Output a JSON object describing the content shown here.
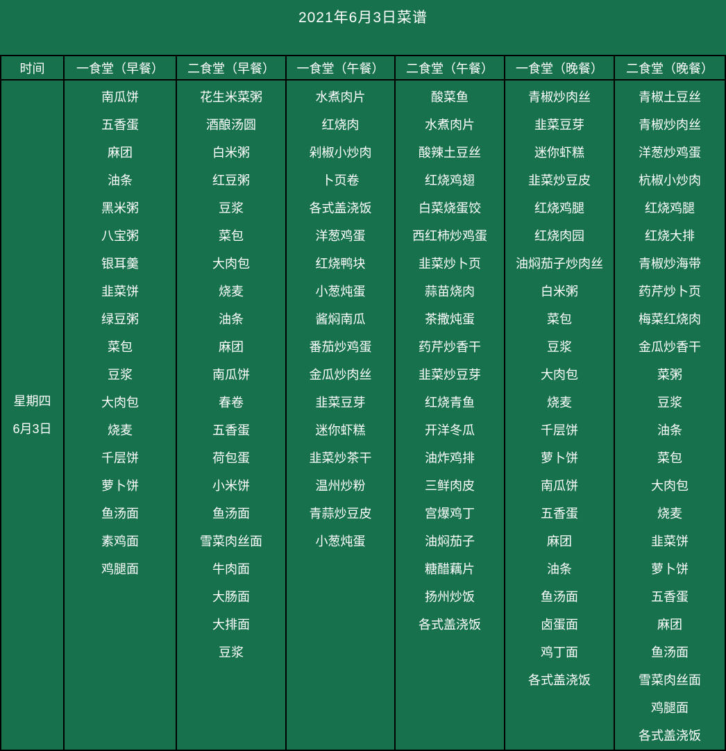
{
  "title": "2021年6月3日菜谱",
  "colors": {
    "background": "#17714D",
    "border": "#000000",
    "text": "#FFFFFF"
  },
  "table": {
    "time_header": "时间",
    "time_cell": {
      "line1": "星期四",
      "line2": "6月3日"
    },
    "columns": [
      {
        "header": "一食堂（早餐）",
        "items": [
          "南瓜饼",
          "五香蛋",
          "麻团",
          "油条",
          "黑米粥",
          "八宝粥",
          "银耳羹",
          "韭菜饼",
          "绿豆粥",
          "菜包",
          "豆浆",
          "大肉包",
          "烧麦",
          "千层饼",
          "萝卜饼",
          "鱼汤面",
          "素鸡面",
          "鸡腿面"
        ]
      },
      {
        "header": "二食堂（早餐）",
        "items": [
          "花生米菜粥",
          "酒酿汤圆",
          "白米粥",
          "红豆粥",
          "豆浆",
          "菜包",
          "大肉包",
          "烧麦",
          "油条",
          "麻团",
          "南瓜饼",
          "春卷",
          "五香蛋",
          "荷包蛋",
          "小米饼",
          "鱼汤面",
          "雪菜肉丝面",
          "牛肉面",
          "大肠面",
          "大排面",
          "豆浆"
        ]
      },
      {
        "header": "一食堂（午餐）",
        "items": [
          "水煮肉片",
          "红烧肉",
          "剁椒小炒肉",
          "卜页卷",
          "各式盖浇饭",
          "洋葱鸡蛋",
          "红烧鸭块",
          "小葱炖蛋",
          "酱焖南瓜",
          "番茄炒鸡蛋",
          "金瓜炒肉丝",
          "韭菜豆芽",
          "迷你虾糕",
          "韭菜炒茶干",
          "温州炒粉",
          "青蒜炒豆皮",
          "小葱炖蛋"
        ]
      },
      {
        "header": "二食堂（午餐）",
        "items": [
          "酸菜鱼",
          "水煮肉片",
          "酸辣土豆丝",
          "红烧鸡翅",
          "白菜烧蛋饺",
          "西红柿炒鸡蛋",
          "韭菜炒卜页",
          "蒜苗烧肉",
          "茶撒炖蛋",
          "药芹炒香干",
          "韭菜炒豆芽",
          "红烧青鱼",
          "开洋冬瓜",
          "油炸鸡排",
          "三鲜肉皮",
          "宫爆鸡丁",
          "油焖茄子",
          "糖醋藕片",
          "扬州炒饭",
          "各式盖浇饭"
        ]
      },
      {
        "header": "一食堂（晚餐）",
        "items": [
          "青椒炒肉丝",
          "韭菜豆芽",
          "迷你虾糕",
          "韭菜炒豆皮",
          "红烧鸡腿",
          "红烧肉园",
          "油焖茄子炒肉丝",
          "白米粥",
          "菜包",
          "豆浆",
          "大肉包",
          "烧麦",
          "千层饼",
          "萝卜饼",
          "南瓜饼",
          "五香蛋",
          "麻团",
          "油条",
          "鱼汤面",
          "卤蛋面",
          "鸡丁面",
          "各式盖浇饭"
        ]
      },
      {
        "header": "二食堂（晚餐）",
        "items": [
          "青椒土豆丝",
          "青椒炒肉丝",
          "洋葱炒鸡蛋",
          "杭椒小炒肉",
          "红烧鸡腿",
          "红烧大排",
          "青椒炒海带",
          "药芹炒卜页",
          "梅菜红烧肉",
          "金瓜炒香干",
          "菜粥",
          "豆浆",
          "油条",
          "菜包",
          "大肉包",
          "烧麦",
          "韭菜饼",
          "萝卜饼",
          "五香蛋",
          "麻团",
          "鱼汤面",
          "雪菜肉丝面",
          "鸡腿面",
          "各式盖浇饭"
        ]
      }
    ]
  }
}
